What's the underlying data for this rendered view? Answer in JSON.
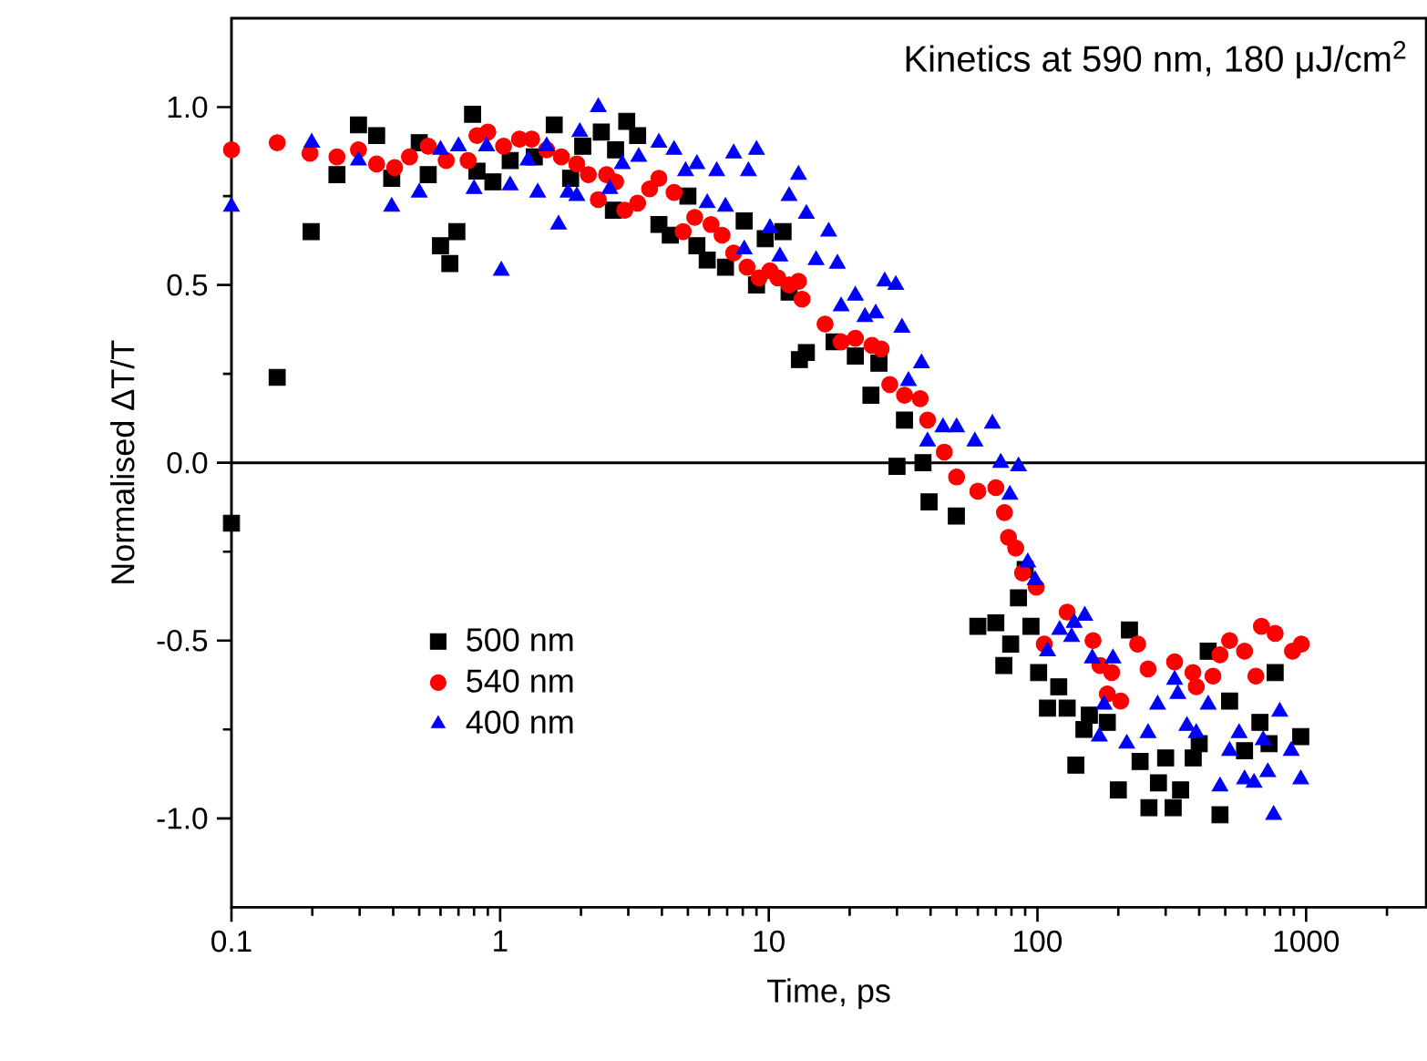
{
  "chart_data": {
    "type": "scatter",
    "title": "Kinetics at 590 nm, 180 μJ/cm$^{2}$",
    "xlabel": "Time, ps",
    "ylabel": "Normalised ΔT/T",
    "log": "x",
    "xlim": [
      0.1,
      2800
    ],
    "xticks": [
      0.1,
      1,
      10,
      100,
      1000
    ],
    "ylim": [
      -1.25,
      1.25
    ],
    "yticks": [
      {
        "value": -1,
        "label": "-1.0"
      },
      {
        "value": -0.5,
        "label": "-0.5"
      },
      {
        "value": 0,
        "label": "0.0"
      },
      {
        "value": 0.5,
        "label": "0.5"
      },
      {
        "value": 1,
        "label": "1.0"
      }
    ],
    "legend": "bottom left",
    "ref_lines": [
      {
        "axis": "y",
        "value": 0,
        "color": "#000000",
        "line_style": "solid"
      }
    ],
    "series": [
      {
        "name": "500 nm",
        "color": "#000000",
        "marker": "square",
        "x": [
          0.1,
          0.148,
          0.198,
          0.247,
          0.297,
          0.347,
          0.395,
          0.5,
          0.54,
          0.6,
          0.65,
          0.69,
          0.79,
          0.82,
          0.94,
          1.09,
          1.34,
          1.59,
          1.83,
          2.03,
          2.38,
          2.64,
          2.69,
          2.96,
          3.25,
          3.9,
          4.3,
          5.0,
          5.4,
          5.9,
          6.9,
          8.1,
          9.0,
          9.7,
          11.3,
          11.9,
          13,
          13.8,
          17.5,
          21,
          24,
          25.7,
          30,
          32,
          37.5,
          39.5,
          49.9,
          60,
          70,
          75,
          79.5,
          85,
          90,
          94.6,
          101,
          109,
          120,
          129,
          139,
          149,
          156,
          182,
          200,
          220,
          241,
          260,
          282,
          300,
          320,
          341,
          380,
          400,
          432,
          478,
          519,
          590,
          673,
          728,
          767,
          955
        ],
        "values": [
          -0.17,
          0.24,
          0.65,
          0.81,
          0.95,
          0.92,
          0.8,
          0.9,
          0.81,
          0.61,
          0.56,
          0.65,
          0.98,
          0.82,
          0.79,
          0.85,
          0.86,
          0.95,
          0.8,
          0.89,
          0.93,
          0.71,
          0.88,
          0.96,
          0.92,
          0.67,
          0.64,
          0.75,
          0.61,
          0.57,
          0.55,
          0.68,
          0.5,
          0.63,
          0.65,
          0.48,
          0.29,
          0.31,
          0.34,
          0.3,
          0.19,
          0.28,
          -0.01,
          0.12,
          0.0,
          -0.11,
          -0.15,
          -0.46,
          -0.45,
          -0.57,
          -0.51,
          -0.38,
          -0.3,
          -0.46,
          -0.59,
          -0.69,
          -0.63,
          -0.69,
          -0.85,
          -0.75,
          -0.71,
          -0.73,
          -0.92,
          -0.47,
          -0.84,
          -0.97,
          -0.9,
          -0.83,
          -0.97,
          -0.92,
          -0.83,
          -0.79,
          -0.53,
          -0.99,
          -0.67,
          -0.81,
          -0.73,
          -0.79,
          -0.59,
          -0.77
        ]
      },
      {
        "name": "540 nm",
        "color": "#ff0000",
        "marker": "circle",
        "x": [
          0.1,
          0.148,
          0.196,
          0.247,
          0.297,
          0.347,
          0.405,
          0.46,
          0.54,
          0.63,
          0.76,
          0.82,
          0.9,
          1.03,
          1.18,
          1.31,
          1.49,
          1.69,
          1.93,
          2.13,
          2.32,
          2.49,
          2.69,
          2.91,
          3.25,
          3.6,
          3.9,
          4.44,
          4.8,
          5.3,
          6.1,
          6.7,
          7.4,
          8.3,
          9.2,
          10.1,
          10.8,
          11.9,
          12.9,
          13.3,
          16.2,
          18.6,
          21,
          24.2,
          26.2,
          28.2,
          32,
          36.6,
          39,
          45,
          50,
          60,
          70,
          75.4,
          78,
          83,
          88,
          99,
          106,
          129,
          161,
          171,
          182,
          189,
          204,
          236,
          258,
          324,
          379,
          390,
          450,
          478,
          519,
          590,
          650,
          682,
          767,
          890,
          960
        ],
        "values": [
          0.88,
          0.9,
          0.87,
          0.86,
          0.88,
          0.84,
          0.83,
          0.86,
          0.89,
          0.85,
          0.85,
          0.92,
          0.93,
          0.89,
          0.91,
          0.91,
          0.88,
          0.86,
          0.84,
          0.81,
          0.74,
          0.81,
          0.79,
          0.71,
          0.73,
          0.77,
          0.8,
          0.76,
          0.65,
          0.69,
          0.67,
          0.64,
          0.59,
          0.55,
          0.52,
          0.54,
          0.52,
          0.5,
          0.51,
          0.46,
          0.39,
          0.34,
          0.35,
          0.33,
          0.32,
          0.22,
          0.19,
          0.18,
          0.12,
          0.03,
          -0.04,
          -0.08,
          -0.07,
          -0.14,
          -0.21,
          -0.24,
          -0.31,
          -0.35,
          -0.51,
          -0.42,
          -0.5,
          -0.57,
          -0.65,
          -0.59,
          -0.67,
          -0.51,
          -0.58,
          -0.56,
          -0.59,
          -0.63,
          -0.6,
          -0.54,
          -0.5,
          -0.53,
          -0.6,
          -0.46,
          -0.48,
          -0.53,
          -0.51
        ]
      },
      {
        "name": "400 nm",
        "color": "#0000ff",
        "marker": "triangle",
        "x": [
          0.1,
          0.199,
          0.297,
          0.395,
          0.5,
          0.6,
          0.7,
          0.8,
          0.89,
          1.01,
          1.09,
          1.27,
          1.38,
          1.49,
          1.65,
          1.79,
          1.93,
          1.98,
          2.32,
          2.56,
          2.85,
          3.28,
          3.9,
          4.44,
          4.9,
          5.4,
          5.9,
          6.4,
          6.9,
          7.4,
          8.1,
          8.4,
          9.0,
          10.1,
          11.0,
          11.9,
          12.9,
          13.8,
          15.0,
          16.7,
          18,
          18.6,
          21,
          22.8,
          25,
          27,
          29.7,
          31.3,
          33.1,
          37,
          39,
          44.5,
          50,
          58.5,
          68,
          73,
          79,
          85,
          92,
          98,
          109,
          121,
          134,
          137,
          150,
          160,
          170,
          177,
          191,
          215,
          258,
          280,
          324,
          333,
          360,
          390,
          432,
          478,
          519,
          563,
          590,
          640,
          692,
          720,
          757,
          798,
          880,
          955
        ],
        "values": [
          0.72,
          0.9,
          0.85,
          0.72,
          0.76,
          0.88,
          0.89,
          0.77,
          0.89,
          0.54,
          0.78,
          0.85,
          0.76,
          0.89,
          0.67,
          0.76,
          0.75,
          0.93,
          1.0,
          0.77,
          0.84,
          0.86,
          0.9,
          0.88,
          0.82,
          0.84,
          0.73,
          0.82,
          0.72,
          0.87,
          0.6,
          0.82,
          0.88,
          0.66,
          0.58,
          0.75,
          0.81,
          0.7,
          0.57,
          0.65,
          0.56,
          0.44,
          0.47,
          0.41,
          0.42,
          0.51,
          0.5,
          0.38,
          0.23,
          0.28,
          0.06,
          0.1,
          0.1,
          0.06,
          0.11,
          0.0,
          -0.09,
          -0.01,
          -0.28,
          -0.33,
          -0.53,
          -0.47,
          -0.49,
          -0.45,
          -0.43,
          -0.55,
          -0.77,
          -0.68,
          -0.55,
          -0.79,
          -0.76,
          -0.68,
          -0.61,
          -0.65,
          -0.74,
          -0.76,
          -0.68,
          -0.91,
          -0.81,
          -0.76,
          -0.89,
          -0.9,
          -0.78,
          -0.87,
          -0.99,
          -0.7,
          -0.81,
          -0.89
        ]
      }
    ]
  }
}
